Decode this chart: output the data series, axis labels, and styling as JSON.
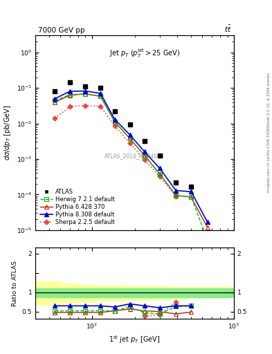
{
  "title_top": "7000 GeV pp",
  "title_top_right": "tt",
  "annotation_id": "ATLAS_2014_I1304688",
  "x_pts": [
    55,
    70,
    90,
    115,
    145,
    185,
    235,
    300,
    390,
    500,
    650
  ],
  "atlas_y": [
    0.082,
    0.145,
    0.11,
    0.1,
    0.022,
    0.0095,
    0.0032,
    0.00125,
    0.00022,
    0.000165,
    null
  ],
  "herwig_y": [
    0.044,
    0.065,
    0.068,
    0.058,
    0.011,
    0.0038,
    0.00125,
    0.00038,
    9.5e-05,
    8.5e-05,
    5.5e-06
  ],
  "pythia6_y": [
    0.04,
    0.062,
    0.068,
    0.058,
    0.011,
    0.0038,
    0.00125,
    0.00038,
    9.5e-05,
    8.5e-05,
    1.2e-05
  ],
  "pythia8_y": [
    0.05,
    0.08,
    0.082,
    0.07,
    0.013,
    0.0048,
    0.0016,
    0.00055,
    0.00013,
    0.00012,
    1.7e-05
  ],
  "sherpa_y": [
    0.014,
    0.03,
    0.032,
    0.03,
    0.0085,
    0.0028,
    0.00095,
    0.00032,
    9e-05,
    null,
    null
  ],
  "herwig_ratio": [
    0.52,
    0.52,
    0.52,
    0.52,
    0.52,
    0.62,
    0.47,
    0.44,
    0.63,
    0.65,
    null
  ],
  "pythia6_ratio": [
    0.48,
    0.48,
    0.48,
    0.48,
    0.52,
    0.57,
    0.52,
    0.5,
    0.44,
    0.49,
    null
  ],
  "pythia8_ratio": [
    0.65,
    0.65,
    0.65,
    0.65,
    0.62,
    0.7,
    0.65,
    0.6,
    0.65,
    0.65,
    null
  ],
  "sherpa_ratio": [
    null,
    null,
    null,
    null,
    null,
    null,
    0.38,
    0.42,
    0.75,
    null,
    null
  ],
  "colors": {
    "atlas": "#000000",
    "herwig": "#00bb00",
    "pythia6": "#bb2200",
    "pythia8": "#0000dd",
    "sherpa": "#ee4444"
  },
  "ylim_main": [
    1e-05,
    3
  ],
  "ylim_ratio": [
    0.32,
    2.15
  ],
  "xlim": [
    40,
    1000
  ]
}
